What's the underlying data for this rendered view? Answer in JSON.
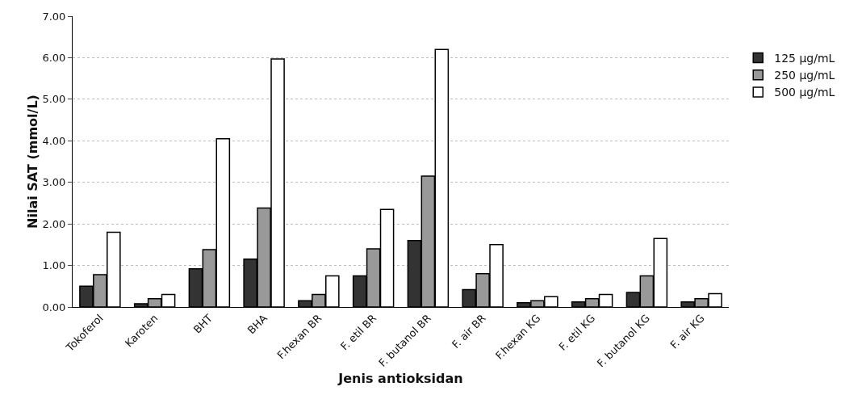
{
  "chart_data": {
    "type": "bar",
    "xlabel": "Jenis antioksidan",
    "ylabel": "Nilai SAT (mmol/L)",
    "categories": [
      "Tokoferol",
      "Karoten",
      "BHT",
      "BHA",
      "F.hexan BR",
      "F. etil BR",
      "F. butanol BR",
      "F. air BR",
      "F.hexan KG",
      "F. etil KG",
      "F. butanol KG",
      "F. air KG"
    ],
    "series": [
      {
        "name": "125 µg/mL",
        "color": "#333333",
        "values": [
          0.5,
          0.08,
          0.92,
          1.15,
          0.15,
          0.75,
          1.6,
          0.42,
          0.1,
          0.12,
          0.35,
          0.12
        ]
      },
      {
        "name": "250 µg/mL",
        "color": "#999999",
        "values": [
          0.78,
          0.2,
          1.38,
          2.38,
          0.3,
          1.4,
          3.15,
          0.8,
          0.15,
          0.2,
          0.75,
          0.2
        ]
      },
      {
        "name": "500 µg/mL",
        "color": "#ffffff",
        "values": [
          1.8,
          0.3,
          4.05,
          5.97,
          0.75,
          2.35,
          6.2,
          1.5,
          0.25,
          0.3,
          1.65,
          0.32
        ]
      }
    ],
    "ylim": [
      0,
      7
    ],
    "yticks": [
      {
        "value": 0,
        "label": "0.00"
      },
      {
        "value": 1,
        "label": "1.00"
      },
      {
        "value": 2,
        "label": "2.00"
      },
      {
        "value": 3,
        "label": "3.00"
      },
      {
        "value": 4,
        "label": "4.00"
      },
      {
        "value": 5,
        "label": "5.00"
      },
      {
        "value": 6,
        "label": "6.00"
      },
      {
        "value": 7,
        "label": "7.00"
      }
    ],
    "grid": "y",
    "legend": "right"
  }
}
